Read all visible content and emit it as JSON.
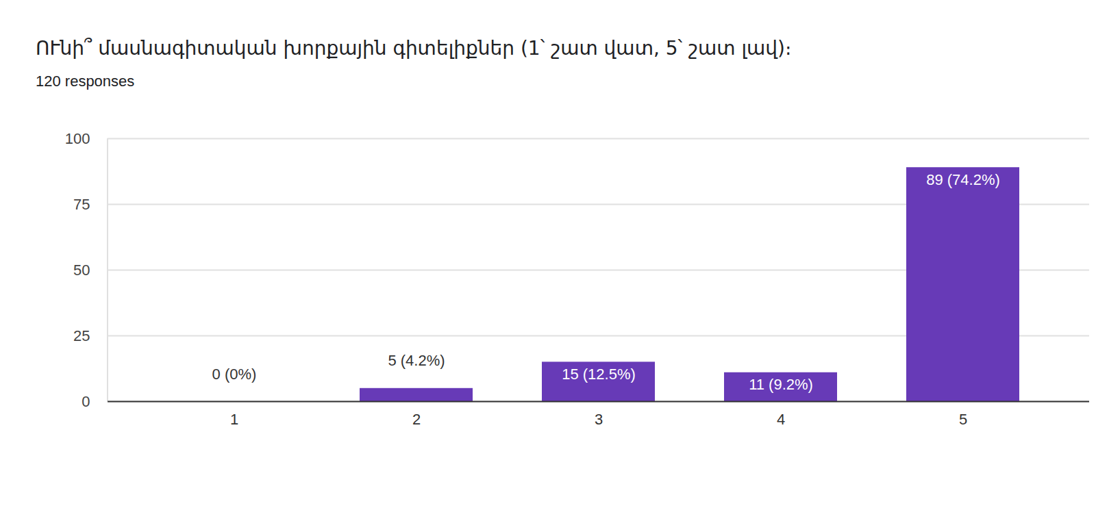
{
  "chart_data": {
    "type": "bar",
    "title": "ՈՒնի՞ մասնագիտական խորքային գիտելիքներ (1՝ շատ վատ, 5՝ շատ լավ)։",
    "subtitle": "120 responses",
    "categories": [
      "1",
      "2",
      "3",
      "4",
      "5"
    ],
    "values": [
      0,
      5,
      15,
      11,
      89
    ],
    "value_labels": [
      "0 (0%)",
      "5 (4.2%)",
      "15 (12.5%)",
      "11 (9.2%)",
      "89 (74.2%)"
    ],
    "color": "#673ab7",
    "ylim": [
      0,
      100
    ],
    "yticks": [
      0,
      25,
      50,
      75,
      100
    ],
    "grid": true,
    "data_labels": true
  }
}
